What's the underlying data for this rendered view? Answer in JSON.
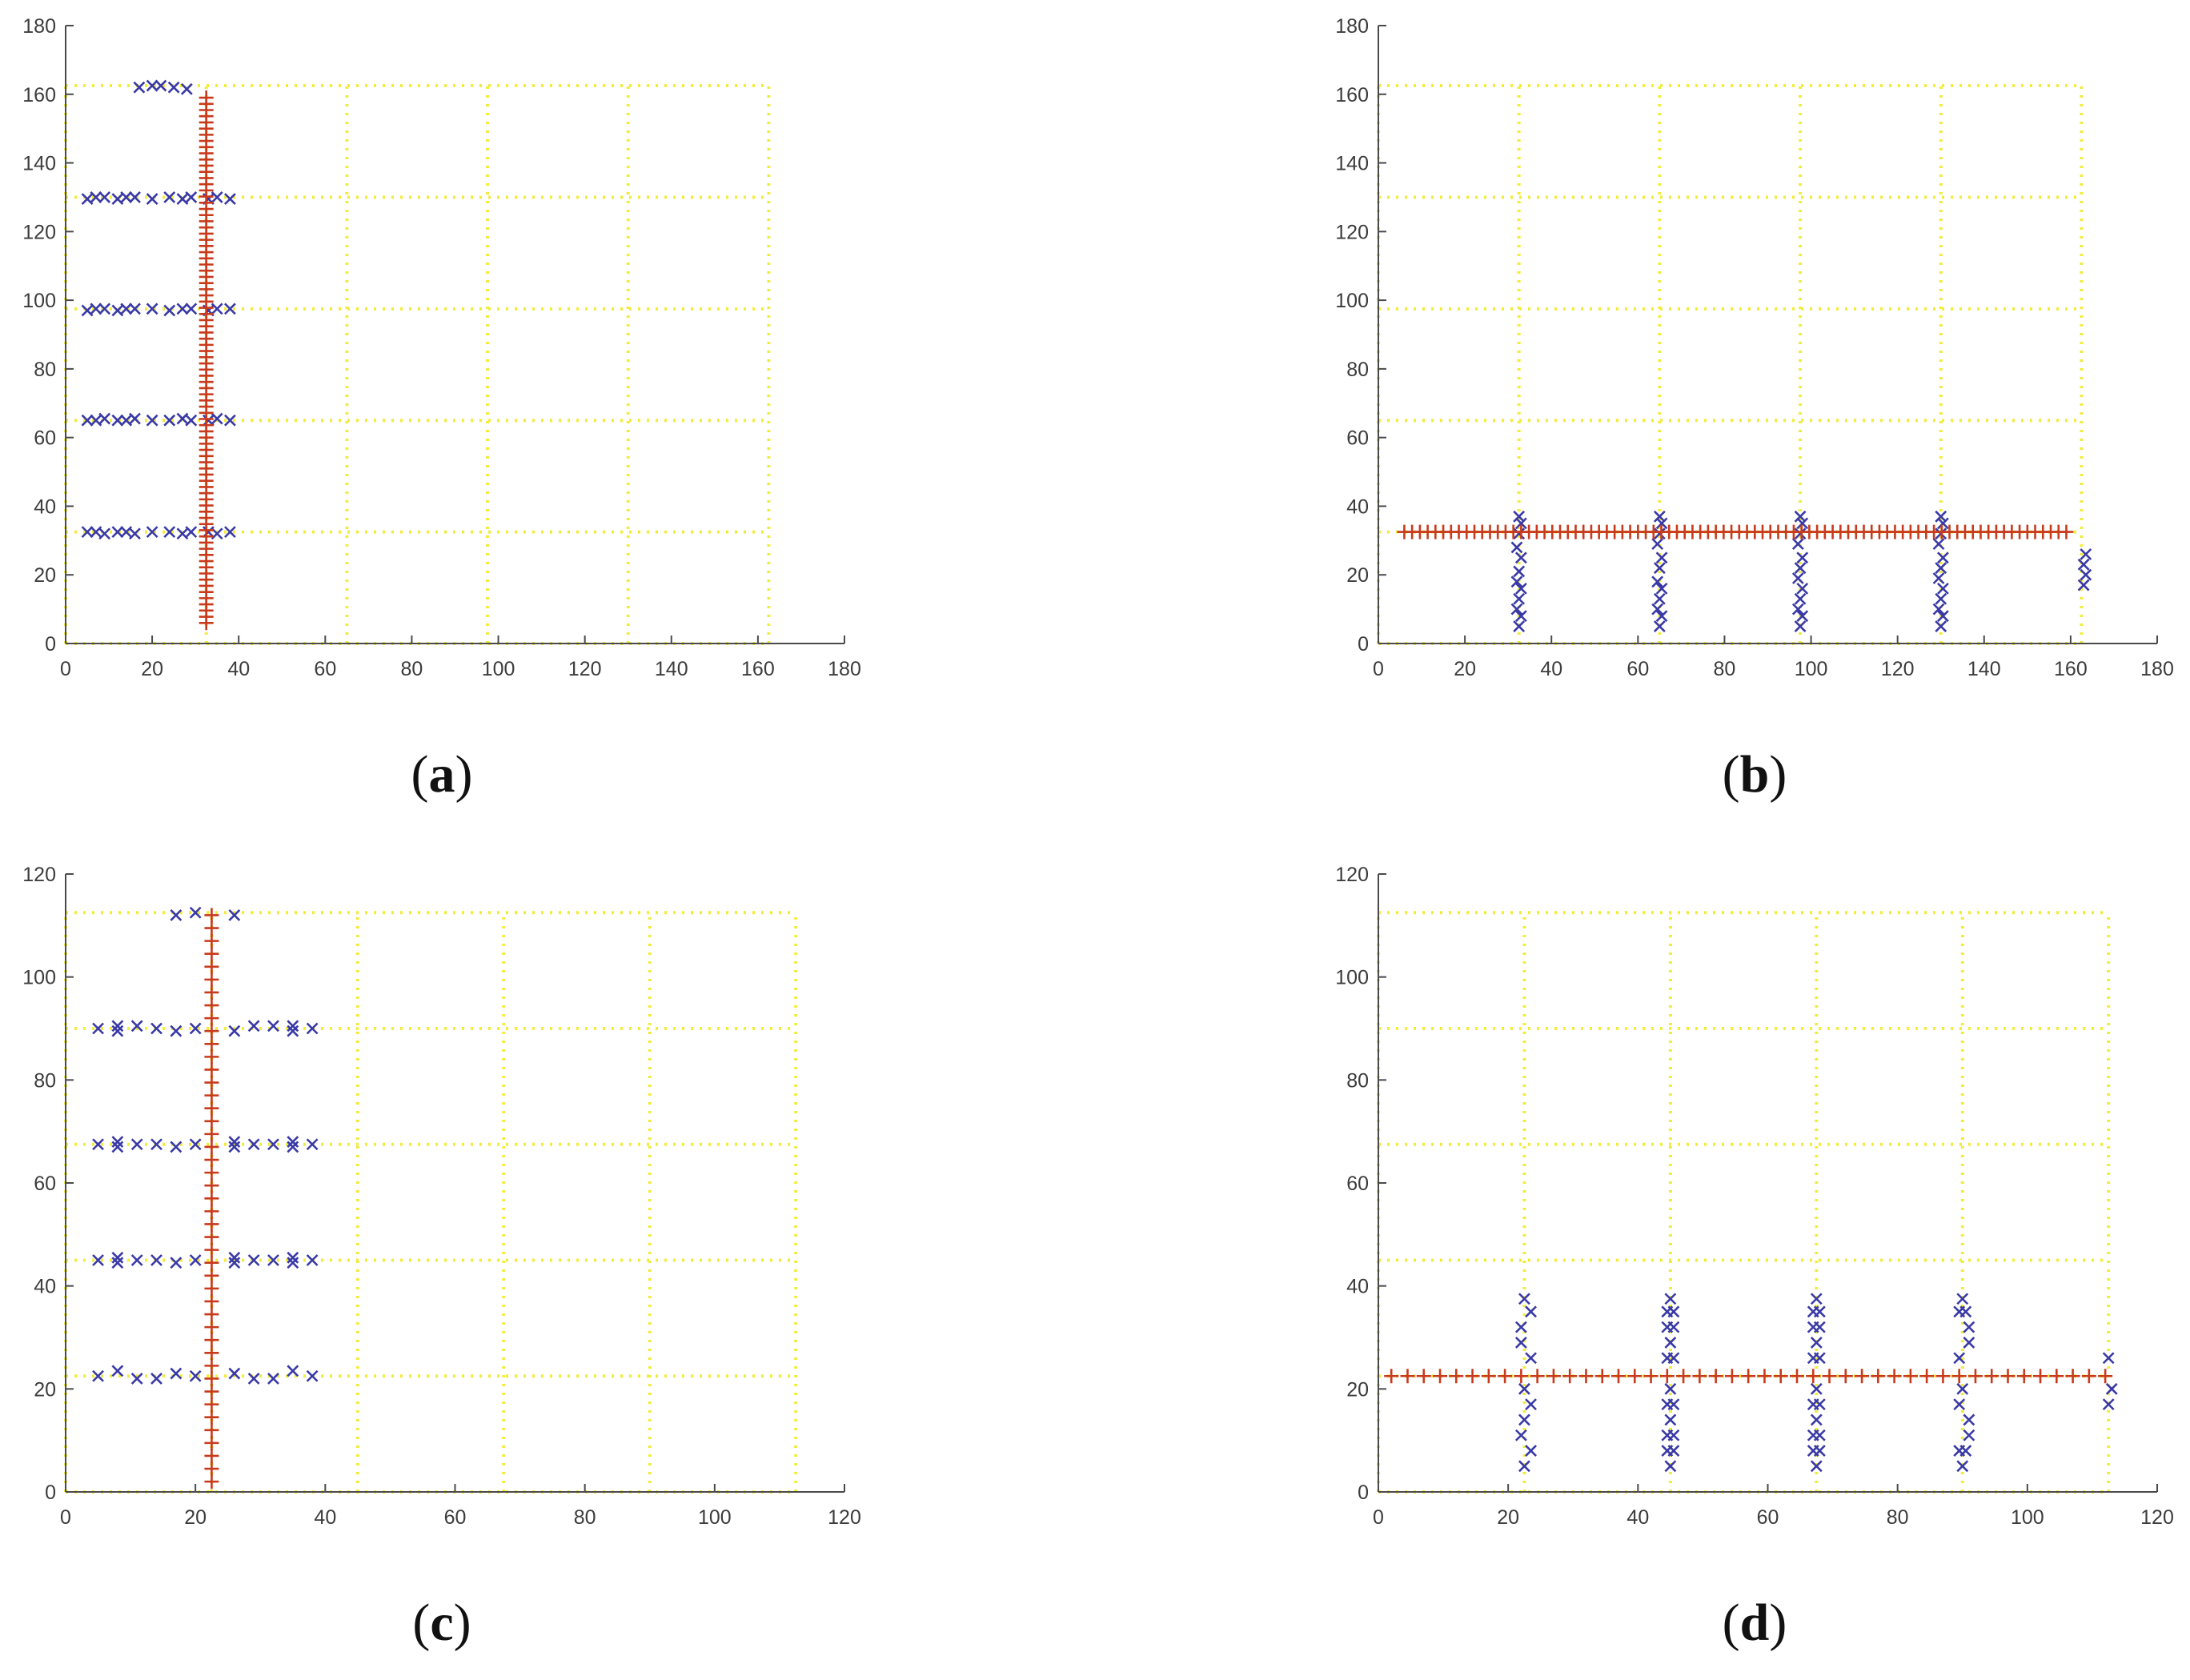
{
  "colors": {
    "grid": "#f2ec3a",
    "router": "#3a3aa6",
    "path": "#c83a1c",
    "axis": "#4a4a4a"
  },
  "panels": [
    {
      "label": "(a)",
      "label_letter": "a"
    },
    {
      "label": "(b)",
      "label_letter": "b"
    },
    {
      "label": "(c)",
      "label_letter": "c"
    },
    {
      "label": "(d)",
      "label_letter": "d"
    }
  ],
  "chart_data": [
    {
      "id": "a",
      "type": "scatter",
      "title": "",
      "xlabel": "",
      "ylabel": "",
      "xlim": [
        0,
        180
      ],
      "ylim": [
        0,
        180
      ],
      "xticks": [
        0,
        20,
        40,
        60,
        80,
        100,
        120,
        140,
        160,
        180
      ],
      "yticks": [
        0,
        20,
        40,
        60,
        80,
        100,
        120,
        140,
        160,
        180
      ],
      "grid_lines": {
        "x": [
          0,
          32.5,
          65,
          97.5,
          130,
          162.5
        ],
        "y": [
          0,
          32.5,
          65,
          97.5,
          130,
          162.5
        ],
        "extent": [
          0,
          162.5
        ]
      },
      "series": [
        {
          "name": "x-markers",
          "marker": "x",
          "points": [
            [
              17,
              162
            ],
            [
              20,
              162.5
            ],
            [
              22,
              162.5
            ],
            [
              25,
              162
            ],
            [
              28,
              161.5
            ],
            [
              5,
              129.5
            ],
            [
              7,
              130
            ],
            [
              9,
              130
            ],
            [
              12,
              129.5
            ],
            [
              14,
              130
            ],
            [
              16,
              130
            ],
            [
              20,
              129.5
            ],
            [
              24,
              130
            ],
            [
              27,
              129.5
            ],
            [
              29,
              130
            ],
            [
              33,
              129.5
            ],
            [
              35,
              130
            ],
            [
              38,
              129.5
            ],
            [
              5,
              97
            ],
            [
              7,
              97.5
            ],
            [
              9,
              97.5
            ],
            [
              12,
              97
            ],
            [
              14,
              97.5
            ],
            [
              16,
              97.5
            ],
            [
              20,
              97.5
            ],
            [
              24,
              97
            ],
            [
              27,
              97.5
            ],
            [
              29,
              97.5
            ],
            [
              33,
              97
            ],
            [
              35,
              97.5
            ],
            [
              38,
              97.5
            ],
            [
              5,
              65
            ],
            [
              7,
              65
            ],
            [
              9,
              65.5
            ],
            [
              12,
              65
            ],
            [
              14,
              65
            ],
            [
              16,
              65.5
            ],
            [
              20,
              65
            ],
            [
              24,
              65
            ],
            [
              27,
              65.5
            ],
            [
              29,
              65
            ],
            [
              33,
              65
            ],
            [
              35,
              65.5
            ],
            [
              38,
              65
            ],
            [
              5,
              32.5
            ],
            [
              7,
              32.5
            ],
            [
              9,
              32
            ],
            [
              12,
              32.5
            ],
            [
              14,
              32.5
            ],
            [
              16,
              32
            ],
            [
              20,
              32.5
            ],
            [
              24,
              32.5
            ],
            [
              27,
              32
            ],
            [
              29,
              32.5
            ],
            [
              33,
              32.5
            ],
            [
              35,
              32
            ],
            [
              38,
              32.5
            ]
          ]
        },
        {
          "name": "plus-markers",
          "marker": "+",
          "line": {
            "axis": "vertical",
            "at": 32.5,
            "from": 6,
            "to": 159,
            "step": 1.8
          }
        }
      ]
    },
    {
      "id": "b",
      "type": "scatter",
      "title": "",
      "xlabel": "",
      "ylabel": "",
      "xlim": [
        0,
        180
      ],
      "ylim": [
        0,
        180
      ],
      "xticks": [
        0,
        20,
        40,
        60,
        80,
        100,
        120,
        140,
        160,
        180
      ],
      "yticks": [
        0,
        20,
        40,
        60,
        80,
        100,
        120,
        140,
        160,
        180
      ],
      "grid_lines": {
        "x": [
          0,
          32.5,
          65,
          97.5,
          130,
          162.5
        ],
        "y": [
          0,
          32.5,
          65,
          97.5,
          130,
          162.5
        ],
        "extent": [
          0,
          162.5
        ]
      },
      "series": [
        {
          "name": "x-markers",
          "marker": "x",
          "points": [
            [
              32.5,
              5
            ],
            [
              33,
              8
            ],
            [
              32,
              10
            ],
            [
              32.5,
              13
            ],
            [
              33,
              16
            ],
            [
              32,
              18
            ],
            [
              32.5,
              21
            ],
            [
              33,
              25
            ],
            [
              32,
              28
            ],
            [
              32.5,
              32
            ],
            [
              33,
              35
            ],
            [
              32.5,
              37
            ],
            [
              65,
              5
            ],
            [
              65.5,
              8
            ],
            [
              64.5,
              10
            ],
            [
              65,
              13
            ],
            [
              65.5,
              16
            ],
            [
              64.5,
              18
            ],
            [
              65,
              22
            ],
            [
              65.5,
              25
            ],
            [
              64.5,
              29
            ],
            [
              65,
              32
            ],
            [
              65.5,
              35
            ],
            [
              65,
              37
            ],
            [
              97.5,
              5
            ],
            [
              98,
              8
            ],
            [
              97,
              10
            ],
            [
              97.5,
              13
            ],
            [
              98,
              16
            ],
            [
              97,
              19
            ],
            [
              97.5,
              22
            ],
            [
              98,
              25
            ],
            [
              97,
              29
            ],
            [
              97.5,
              32
            ],
            [
              98,
              35
            ],
            [
              97.5,
              37
            ],
            [
              130,
              5
            ],
            [
              130.5,
              8
            ],
            [
              129.5,
              10
            ],
            [
              130,
              13
            ],
            [
              130.5,
              16
            ],
            [
              129.5,
              19
            ],
            [
              130,
              22
            ],
            [
              130.5,
              25
            ],
            [
              129.5,
              29
            ],
            [
              130,
              32
            ],
            [
              130.5,
              35
            ],
            [
              130,
              37
            ],
            [
              163,
              17
            ],
            [
              163.5,
              20
            ],
            [
              163,
              23
            ],
            [
              163.5,
              26
            ]
          ]
        },
        {
          "name": "plus-markers",
          "marker": "+",
          "line": {
            "axis": "horizontal",
            "at": 32.5,
            "from": 6,
            "to": 159,
            "step": 1.8
          }
        }
      ]
    },
    {
      "id": "c",
      "type": "scatter",
      "title": "",
      "xlabel": "",
      "ylabel": "",
      "xlim": [
        0,
        120
      ],
      "ylim": [
        0,
        120
      ],
      "xticks": [
        0,
        20,
        40,
        60,
        80,
        100,
        120
      ],
      "yticks": [
        0,
        20,
        40,
        60,
        80,
        100,
        120
      ],
      "grid_lines": {
        "x": [
          0,
          22.5,
          45,
          67.5,
          90,
          112.5
        ],
        "y": [
          0,
          22.5,
          45,
          67.5,
          90,
          112.5
        ],
        "extent": [
          0,
          112.5
        ]
      },
      "series": [
        {
          "name": "x-markers",
          "marker": "x",
          "points": [
            [
              17,
              112
            ],
            [
              20,
              112.5
            ],
            [
              26,
              112
            ],
            [
              5,
              90
            ],
            [
              8,
              89.5
            ],
            [
              8,
              90.5
            ],
            [
              11,
              90.5
            ],
            [
              14,
              90
            ],
            [
              17,
              89.5
            ],
            [
              20,
              90
            ],
            [
              26,
              89.5
            ],
            [
              29,
              90.5
            ],
            [
              32,
              90.5
            ],
            [
              35,
              89.5
            ],
            [
              35,
              90.5
            ],
            [
              38,
              90
            ],
            [
              5,
              67.5
            ],
            [
              8,
              67
            ],
            [
              8,
              68
            ],
            [
              11,
              67.5
            ],
            [
              14,
              67.5
            ],
            [
              17,
              67
            ],
            [
              20,
              67.5
            ],
            [
              26,
              67
            ],
            [
              26,
              68
            ],
            [
              29,
              67.5
            ],
            [
              32,
              67.5
            ],
            [
              35,
              67
            ],
            [
              35,
              68
            ],
            [
              38,
              67.5
            ],
            [
              5,
              45
            ],
            [
              8,
              44.5
            ],
            [
              8,
              45.5
            ],
            [
              11,
              45
            ],
            [
              14,
              45
            ],
            [
              17,
              44.5
            ],
            [
              20,
              45
            ],
            [
              26,
              44.5
            ],
            [
              26,
              45.5
            ],
            [
              29,
              45
            ],
            [
              32,
              45
            ],
            [
              35,
              44.5
            ],
            [
              35,
              45.5
            ],
            [
              38,
              45
            ],
            [
              5,
              22.5
            ],
            [
              8,
              23.5
            ],
            [
              11,
              22
            ],
            [
              14,
              22
            ],
            [
              17,
              23
            ],
            [
              20,
              22.5
            ],
            [
              26,
              23
            ],
            [
              29,
              22
            ],
            [
              32,
              22
            ],
            [
              35,
              23.5
            ],
            [
              38,
              22.5
            ]
          ]
        },
        {
          "name": "plus-markers",
          "marker": "+",
          "line": {
            "axis": "vertical",
            "at": 22.5,
            "from": 2,
            "to": 113,
            "step": 2.5
          }
        }
      ]
    },
    {
      "id": "d",
      "type": "scatter",
      "title": "",
      "xlabel": "",
      "ylabel": "",
      "xlim": [
        0,
        120
      ],
      "ylim": [
        0,
        120
      ],
      "xticks": [
        0,
        20,
        40,
        60,
        80,
        100,
        120
      ],
      "yticks": [
        0,
        20,
        40,
        60,
        80,
        100,
        120
      ],
      "grid_lines": {
        "x": [
          0,
          22.5,
          45,
          67.5,
          90,
          112.5
        ],
        "y": [
          0,
          22.5,
          45,
          67.5,
          90,
          112.5
        ],
        "extent": [
          0,
          112.5
        ]
      },
      "series": [
        {
          "name": "x-markers",
          "marker": "x",
          "points": [
            [
              22.5,
              5
            ],
            [
              23.5,
              8
            ],
            [
              22,
              11
            ],
            [
              22.5,
              14
            ],
            [
              23.5,
              17
            ],
            [
              22.5,
              20
            ],
            [
              23.5,
              26
            ],
            [
              22,
              29
            ],
            [
              22,
              32
            ],
            [
              23.5,
              35
            ],
            [
              22.5,
              37.5
            ],
            [
              45,
              5
            ],
            [
              44.5,
              8
            ],
            [
              45.5,
              8
            ],
            [
              44.5,
              11
            ],
            [
              45.5,
              11
            ],
            [
              45,
              14
            ],
            [
              44.5,
              17
            ],
            [
              45.5,
              17
            ],
            [
              45,
              20
            ],
            [
              44.5,
              26
            ],
            [
              45.5,
              26
            ],
            [
              45,
              29
            ],
            [
              44.5,
              32
            ],
            [
              45.5,
              32
            ],
            [
              44.5,
              35
            ],
            [
              45.5,
              35
            ],
            [
              45,
              37.5
            ],
            [
              67.5,
              5
            ],
            [
              67,
              8
            ],
            [
              68,
              8
            ],
            [
              67,
              11
            ],
            [
              68,
              11
            ],
            [
              67.5,
              14
            ],
            [
              67,
              17
            ],
            [
              68,
              17
            ],
            [
              67.5,
              20
            ],
            [
              67,
              26
            ],
            [
              68,
              26
            ],
            [
              67.5,
              29
            ],
            [
              67,
              32
            ],
            [
              68,
              32
            ],
            [
              67,
              35
            ],
            [
              68,
              35
            ],
            [
              67.5,
              37.5
            ],
            [
              90,
              5
            ],
            [
              89.5,
              8
            ],
            [
              90.5,
              8
            ],
            [
              91,
              11
            ],
            [
              91,
              14
            ],
            [
              89.5,
              17
            ],
            [
              90,
              20
            ],
            [
              89.5,
              26
            ],
            [
              91,
              29
            ],
            [
              91,
              32
            ],
            [
              89.5,
              35
            ],
            [
              90.5,
              35
            ],
            [
              90,
              37.5
            ],
            [
              112.5,
              17
            ],
            [
              113,
              20
            ],
            [
              112.5,
              26
            ]
          ]
        },
        {
          "name": "plus-markers",
          "marker": "+",
          "line": {
            "axis": "horizontal",
            "at": 22.5,
            "from": 2,
            "to": 113,
            "step": 2.5
          }
        }
      ]
    }
  ]
}
